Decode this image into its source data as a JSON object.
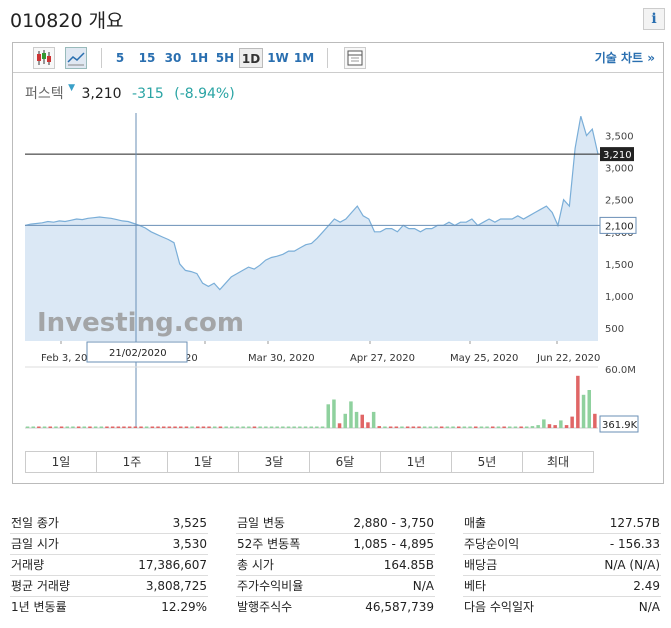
{
  "header": {
    "title": "010820 개요",
    "info_icon": "i"
  },
  "toolbar": {
    "intervals": [
      "5",
      "15",
      "30",
      "1H",
      "5H",
      "1D",
      "1W",
      "1M"
    ],
    "selected_interval": "1D",
    "technical_label": "기술 차트 »"
  },
  "quote": {
    "name": "퍼스텍",
    "price": "3,210",
    "change": "-315",
    "change_pct": "(-8.94%)"
  },
  "colors": {
    "area_fill": "#dbe8f5",
    "area_line": "#7aaed8",
    "volume_up": "#8fd19e",
    "volume_down": "#e06666",
    "accent": "#2a6fb0"
  },
  "chart_data": {
    "type": "area",
    "watermark": "Investing.com",
    "x_tick_labels": [
      "Feb 3, 20",
      "20",
      "Mar 30, 2020",
      "Apr 27, 2020",
      "May 25, 2020",
      "Jun 22, 2020"
    ],
    "y_tick_labels": [
      "3,500",
      "3,000",
      "2,500",
      "2,000",
      "1,500",
      "1,000",
      "500"
    ],
    "y_ticks": [
      3500,
      3000,
      2500,
      2000,
      1500,
      1000,
      500
    ],
    "ylim": [
      300,
      3850
    ],
    "crosshair": {
      "date_label": "21/02/2020",
      "value_label": "2,100",
      "value": 2100
    },
    "last_price": {
      "label": "3,210",
      "value": 3210
    },
    "volume_labels": [
      "60.0M",
      "361.9K"
    ],
    "volume_max": 60,
    "series": [
      {
        "values": [
          2100,
          2120,
          2130,
          2140,
          2160,
          2150,
          2170,
          2160,
          2180,
          2200,
          2190,
          2210,
          2220,
          2230,
          2220,
          2210,
          2190,
          2170,
          2160,
          2130,
          2100,
          2060,
          2000,
          1960,
          1920,
          1880,
          1830,
          1500,
          1400,
          1380,
          1350,
          1200,
          1150,
          1200,
          1100,
          1200,
          1300,
          1350,
          1400,
          1450,
          1420,
          1480,
          1560,
          1600,
          1620,
          1650,
          1700,
          1700,
          1750,
          1800,
          1820,
          1900,
          2000,
          2100,
          2200,
          2150,
          2200,
          2300,
          2400,
          2250,
          2200,
          2000,
          2000,
          2050,
          2050,
          2000,
          2100,
          2050,
          2050,
          2000,
          2050,
          2050,
          2100,
          2100,
          2150,
          2100,
          2150,
          2150,
          2200,
          2100,
          2150,
          2200,
          2150,
          2200,
          2200,
          2200,
          2250,
          2200,
          2250,
          2300,
          2350,
          2400,
          2300,
          2100,
          2500,
          2400,
          3300,
          3800,
          3500,
          3600,
          3210
        ]
      }
    ],
    "volume": [
      {
        "v": 0.6,
        "up": true
      },
      {
        "v": 0.4,
        "up": true
      },
      {
        "v": 0.3,
        "up": false
      },
      {
        "v": 0.5,
        "up": true
      },
      {
        "v": 0.3,
        "up": false
      },
      {
        "v": 0.4,
        "up": true
      },
      {
        "v": 0.2,
        "up": false
      },
      {
        "v": 0.3,
        "up": true
      },
      {
        "v": 0.4,
        "up": true
      },
      {
        "v": 0.3,
        "up": false
      },
      {
        "v": 0.2,
        "up": true
      },
      {
        "v": 0.3,
        "up": false
      },
      {
        "v": 0.3,
        "up": true
      },
      {
        "v": 0.2,
        "up": true
      },
      {
        "v": 0.2,
        "up": false
      },
      {
        "v": 0.3,
        "up": false
      },
      {
        "v": 0.2,
        "up": false
      },
      {
        "v": 0.2,
        "up": false
      },
      {
        "v": 0.3,
        "up": false
      },
      {
        "v": 0.2,
        "up": false
      },
      {
        "v": 0.3,
        "up": false
      },
      {
        "v": 0.2,
        "up": true
      },
      {
        "v": 0.3,
        "up": false
      },
      {
        "v": 0.2,
        "up": false
      },
      {
        "v": 0.3,
        "up": false
      },
      {
        "v": 0.2,
        "up": false
      },
      {
        "v": 0.2,
        "up": false
      },
      {
        "v": 0.8,
        "up": false
      },
      {
        "v": 0.5,
        "up": false
      },
      {
        "v": 0.4,
        "up": true
      },
      {
        "v": 0.3,
        "up": false
      },
      {
        "v": 0.6,
        "up": false
      },
      {
        "v": 0.5,
        "up": false
      },
      {
        "v": 0.4,
        "up": true
      },
      {
        "v": 0.5,
        "up": false
      },
      {
        "v": 0.4,
        "up": true
      },
      {
        "v": 0.4,
        "up": true
      },
      {
        "v": 0.3,
        "up": true
      },
      {
        "v": 0.3,
        "up": true
      },
      {
        "v": 0.3,
        "up": true
      },
      {
        "v": 0.2,
        "up": false
      },
      {
        "v": 0.3,
        "up": true
      },
      {
        "v": 0.3,
        "up": true
      },
      {
        "v": 0.2,
        "up": true
      },
      {
        "v": 0.2,
        "up": true
      },
      {
        "v": 0.2,
        "up": true
      },
      {
        "v": 0.3,
        "up": true
      },
      {
        "v": 0.2,
        "up": true
      },
      {
        "v": 0.3,
        "up": true
      },
      {
        "v": 0.2,
        "up": true
      },
      {
        "v": 0.2,
        "up": true
      },
      {
        "v": 0.3,
        "up": true
      },
      {
        "v": 0.5,
        "up": true
      },
      {
        "v": 25,
        "up": true
      },
      {
        "v": 30,
        "up": true
      },
      {
        "v": 5,
        "up": false
      },
      {
        "v": 15,
        "up": true
      },
      {
        "v": 28,
        "up": true
      },
      {
        "v": 17,
        "up": true
      },
      {
        "v": 14,
        "up": false
      },
      {
        "v": 6,
        "up": false
      },
      {
        "v": 17,
        "up": true
      },
      {
        "v": 2,
        "up": false
      },
      {
        "v": 1.5,
        "up": true
      },
      {
        "v": 1,
        "up": false
      },
      {
        "v": 1.5,
        "up": false
      },
      {
        "v": 1.5,
        "up": true
      },
      {
        "v": 0.8,
        "up": false
      },
      {
        "v": 1,
        "up": false
      },
      {
        "v": 1.5,
        "up": false
      },
      {
        "v": 1,
        "up": true
      },
      {
        "v": 0.8,
        "up": true
      },
      {
        "v": 1,
        "up": true
      },
      {
        "v": 0.8,
        "up": false
      },
      {
        "v": 0.6,
        "up": true
      },
      {
        "v": 0.8,
        "up": true
      },
      {
        "v": 0.6,
        "up": false
      },
      {
        "v": 0.6,
        "up": true
      },
      {
        "v": 0.8,
        "up": true
      },
      {
        "v": 0.5,
        "up": false
      },
      {
        "v": 0.6,
        "up": true
      },
      {
        "v": 0.8,
        "up": true
      },
      {
        "v": 0.5,
        "up": false
      },
      {
        "v": 0.6,
        "up": true
      },
      {
        "v": 0.5,
        "up": false
      },
      {
        "v": 0.6,
        "up": true
      },
      {
        "v": 1,
        "up": true
      },
      {
        "v": 1.2,
        "up": false
      },
      {
        "v": 1,
        "up": true
      },
      {
        "v": 2,
        "up": true
      },
      {
        "v": 3,
        "up": true
      },
      {
        "v": 9,
        "up": true
      },
      {
        "v": 4,
        "up": false
      },
      {
        "v": 3,
        "up": false
      },
      {
        "v": 8,
        "up": true
      },
      {
        "v": 3,
        "up": false
      },
      {
        "v": 12,
        "up": false
      },
      {
        "v": 55,
        "up": false
      },
      {
        "v": 35,
        "up": true
      },
      {
        "v": 40,
        "up": true
      },
      {
        "v": 15,
        "up": false
      }
    ]
  },
  "time_ranges": [
    "1일",
    "1주",
    "1달",
    "3달",
    "6달",
    "1년",
    "5년",
    "최대"
  ],
  "stats": {
    "col1": [
      {
        "label": "전일 종가",
        "value": "3,525"
      },
      {
        "label": "금일 시가",
        "value": "3,530"
      },
      {
        "label": "거래량",
        "value": "17,386,607"
      },
      {
        "label": "평균 거래량",
        "value": "3,808,725"
      },
      {
        "label": "1년 변동률",
        "value": "12.29%"
      }
    ],
    "col2": [
      {
        "label": "금일 변동",
        "value": "2,880 - 3,750"
      },
      {
        "label": "52주 변동폭",
        "value": "1,085 - 4,895"
      },
      {
        "label": "총 시가",
        "value": "164.85B"
      },
      {
        "label": "주가수익비율",
        "value": "N/A"
      },
      {
        "label": "발행주식수",
        "value": "46,587,739"
      }
    ],
    "col3": [
      {
        "label": "매출",
        "value": "127.57B"
      },
      {
        "label": "주당순이익",
        "value": "- 156.33"
      },
      {
        "label": "배당금",
        "value": "N/A (N/A)"
      },
      {
        "label": "베타",
        "value": "2.49"
      },
      {
        "label": "다음 수익일자",
        "value": "N/A"
      }
    ]
  }
}
